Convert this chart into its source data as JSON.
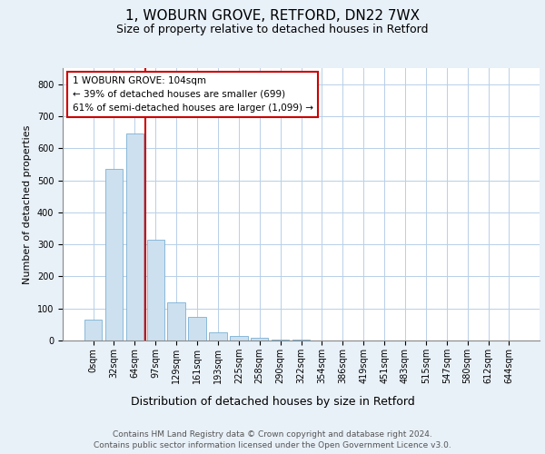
{
  "title_line1": "1, WOBURN GROVE, RETFORD, DN22 7WX",
  "title_line2": "Size of property relative to detached houses in Retford",
  "xlabel": "Distribution of detached houses by size in Retford",
  "ylabel": "Number of detached properties",
  "footnote": "Contains HM Land Registry data © Crown copyright and database right 2024.\nContains public sector information licensed under the Open Government Licence v3.0.",
  "bar_labels": [
    "0sqm",
    "32sqm",
    "64sqm",
    "97sqm",
    "129sqm",
    "161sqm",
    "193sqm",
    "225sqm",
    "258sqm",
    "290sqm",
    "322sqm",
    "354sqm",
    "386sqm",
    "419sqm",
    "451sqm",
    "483sqm",
    "515sqm",
    "547sqm",
    "580sqm",
    "612sqm",
    "644sqm"
  ],
  "bar_values": [
    65,
    535,
    645,
    315,
    120,
    75,
    25,
    15,
    8,
    3,
    2,
    1,
    1,
    1,
    0,
    0,
    0,
    0,
    0,
    0,
    0
  ],
  "bar_color": "#cce0f0",
  "bar_edgecolor": "#7ab0d4",
  "vline_x": 2.5,
  "vline_color": "#cc0000",
  "annotation_text": "1 WOBURN GROVE: 104sqm\n← 39% of detached houses are smaller (699)\n61% of semi-detached houses are larger (1,099) →",
  "ylim": [
    0,
    850
  ],
  "yticks": [
    0,
    100,
    200,
    300,
    400,
    500,
    600,
    700,
    800
  ],
  "background_color": "#e8f0f8",
  "plot_background": "#ffffff",
  "grid_color": "#b8cfe8",
  "title1_fontsize": 11,
  "title2_fontsize": 9,
  "xlabel_fontsize": 9,
  "ylabel_fontsize": 8,
  "footnote_fontsize": 6.5,
  "tick_fontsize": 7
}
